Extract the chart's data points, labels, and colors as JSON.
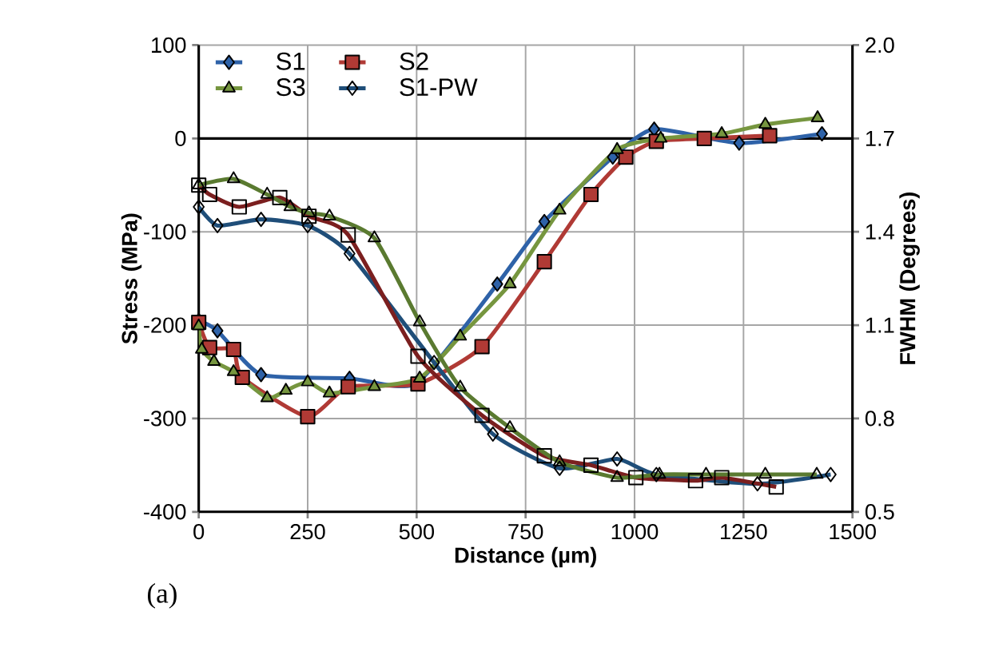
{
  "chart_data": {
    "type": "line",
    "xlabel": "Distance (µm)",
    "ylabel": "Stress (MPa)",
    "y2label": "FWHM (Degrees)",
    "xlim": [
      0,
      1500
    ],
    "xticks": [
      0,
      250,
      500,
      750,
      1000,
      1250,
      1500
    ],
    "ylim": [
      -400,
      100
    ],
    "yticks": [
      -400,
      -300,
      -200,
      -100,
      0,
      100
    ],
    "y2lim": [
      0.5,
      2.0
    ],
    "y2ticks": [
      0.5,
      0.8,
      1.1,
      1.4,
      1.7,
      {
        "value": 2.0,
        "label": "2.0"
      }
    ],
    "grid": true,
    "legend": "top",
    "ref_lines": [
      {
        "axis": "y",
        "value": 0,
        "color": "#000000"
      }
    ],
    "annotations": [
      "(a)"
    ],
    "series": [
      {
        "name": "S1",
        "color": "#2e62a8",
        "marker": "diamond",
        "x": [
          0,
          43,
          143,
          346,
          500,
          685,
          793,
          950,
          1045,
          1240,
          1430
        ],
        "values": [
          -195,
          -206,
          -253,
          -257,
          -262,
          -156,
          -89,
          -20,
          10,
          -5,
          5
        ]
      },
      {
        "name": "S2",
        "color": "#b03a35",
        "marker": "square",
        "x": [
          0,
          25,
          80,
          100,
          250,
          343,
          503,
          650,
          793,
          900,
          980,
          1050,
          1160,
          1310
        ],
        "values": [
          -197,
          -224,
          -226,
          -256,
          -298,
          -266,
          -263,
          -223,
          -132,
          -60,
          -20,
          -3,
          0,
          3
        ]
      },
      {
        "name": "S3",
        "color": "#76963f",
        "marker": "triangle",
        "x": [
          0,
          7,
          35,
          80,
          157,
          200,
          250,
          300,
          403,
          507,
          600,
          714,
          828,
          960,
          1060,
          1200,
          1300,
          1420
        ],
        "values": [
          -201,
          -226,
          -239,
          -250,
          -278,
          -270,
          -261,
          -273,
          -266,
          -257,
          -212,
          -156,
          -77,
          -12,
          0,
          5,
          15,
          22
        ]
      },
      {
        "name": "S1-PW",
        "color": "#1f4e79",
        "marker": "diamond",
        "axis": "y2",
        "x": [
          0,
          43,
          143,
          250,
          346,
          540,
          675,
          828,
          960,
          1050,
          1282,
          1450
        ],
        "values": [
          1.48,
          1.42,
          1.44,
          1.42,
          1.33,
          0.98,
          0.75,
          0.64,
          0.67,
          0.62,
          0.59,
          0.62
        ]
      },
      {
        "color": "#7b1f1f",
        "marker": "square",
        "axis": "y2",
        "x": [
          0,
          25,
          93,
          186,
          253,
          343,
          503,
          650,
          793,
          900,
          1003,
          1140,
          1200,
          1325
        ],
        "values": [
          1.55,
          1.52,
          1.48,
          1.51,
          1.45,
          1.39,
          1.0,
          0.81,
          0.68,
          0.65,
          0.61,
          0.6,
          0.61,
          0.58
        ]
      },
      {
        "color": "#5a7a30",
        "marker": "triangle",
        "axis": "y2",
        "x": [
          0,
          80,
          157,
          210,
          253,
          300,
          403,
          507,
          600,
          714,
          828,
          960,
          1057,
          1164,
          1300,
          1418
        ],
        "values": [
          1.55,
          1.57,
          1.52,
          1.48,
          1.46,
          1.45,
          1.38,
          1.11,
          0.9,
          0.77,
          0.66,
          0.61,
          0.62,
          0.62,
          0.62,
          0.62
        ]
      }
    ]
  }
}
